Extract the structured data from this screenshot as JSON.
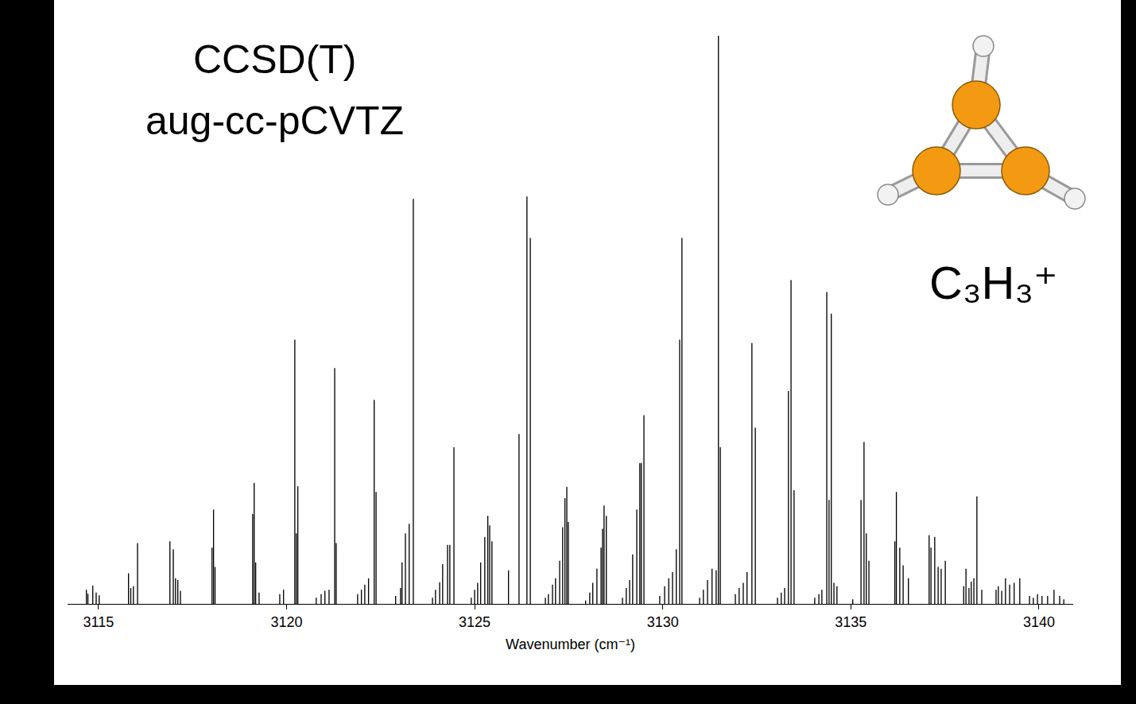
{
  "chart_data": {
    "type": "bar",
    "annotations": [
      "CCSD(T)",
      "aug-cc-pCVTZ",
      "C₃H₃⁺"
    ],
    "x_label": "Wavenumber (cm⁻¹)",
    "x": [
      3114.68,
      3114.72,
      3114.85,
      3114.94,
      3115.02,
      3115.8,
      3115.86,
      3115.93,
      3116.04,
      3116.9,
      3116.99,
      3117.05,
      3117.11,
      3117.18,
      3118.02,
      3118.06,
      3118.1,
      3119.1,
      3119.14,
      3119.18,
      3119.27,
      3119.82,
      3119.92,
      3120.22,
      3120.26,
      3120.3,
      3120.79,
      3120.92,
      3121.02,
      3121.13,
      3121.28,
      3121.32,
      3121.89,
      3121.99,
      3122.08,
      3122.18,
      3122.33,
      3122.38,
      3122.9,
      3123.03,
      3123.07,
      3123.16,
      3123.26,
      3123.37,
      3123.88,
      3123.96,
      3124.07,
      3124.15,
      3124.28,
      3124.34,
      3124.45,
      3124.91,
      3125.0,
      3125.08,
      3125.16,
      3125.27,
      3125.35,
      3125.4,
      3125.46,
      3125.9,
      3126.18,
      3126.39,
      3126.48,
      3126.88,
      3126.96,
      3127.07,
      3127.15,
      3127.26,
      3127.34,
      3127.4,
      3127.45,
      3127.49,
      3127.95,
      3128.06,
      3128.14,
      3128.25,
      3128.36,
      3128.4,
      3128.44,
      3128.5,
      3128.93,
      3129.03,
      3129.12,
      3129.2,
      3129.31,
      3129.39,
      3129.43,
      3129.5,
      3129.92,
      3130.05,
      3130.16,
      3130.26,
      3130.36,
      3130.45,
      3130.51,
      3130.98,
      3131.08,
      3131.19,
      3131.31,
      3131.42,
      3131.48,
      3131.53,
      3131.93,
      3132.03,
      3132.14,
      3132.24,
      3132.37,
      3132.46,
      3133.05,
      3133.15,
      3133.24,
      3133.34,
      3133.41,
      3133.49,
      3134.04,
      3134.15,
      3134.23,
      3134.36,
      3134.42,
      3134.48,
      3134.55,
      3134.63,
      3135.05,
      3135.27,
      3135.35,
      3135.41,
      3135.48,
      3136.17,
      3136.21,
      3136.3,
      3136.39,
      3136.53,
      3137.08,
      3137.13,
      3137.23,
      3137.32,
      3137.4,
      3137.51,
      3138.0,
      3138.06,
      3138.14,
      3138.2,
      3138.27,
      3138.35,
      3138.48,
      3138.86,
      3138.92,
      3139.01,
      3139.11,
      3139.22,
      3139.34,
      3139.49,
      3139.75,
      3139.85,
      3139.96,
      3140.08,
      3140.23,
      3140.4,
      3140.55,
      3140.66
    ],
    "values": [
      2.5,
      1.8,
      3.2,
      2.0,
      1.5,
      5.4,
      2.8,
      3.1,
      10.7,
      11.0,
      9.6,
      4.5,
      4.2,
      2.3,
      9.9,
      16.6,
      6.5,
      15.8,
      21.3,
      7.3,
      2.0,
      1.7,
      2.5,
      46.5,
      12.4,
      20.7,
      1.1,
      1.7,
      2.3,
      2.5,
      41.5,
      10.7,
      1.7,
      2.5,
      3.4,
      4.5,
      35.9,
      19.7,
      1.4,
      2.8,
      7.3,
      12.4,
      14.1,
      71.3,
      1.1,
      2.5,
      3.8,
      7.0,
      10.4,
      10.4,
      27.6,
      1.1,
      2.5,
      3.7,
      7.3,
      11.8,
      15.5,
      13.8,
      11.0,
      5.9,
      29.9,
      71.7,
      64.4,
      1.1,
      1.7,
      3.4,
      4.5,
      7.6,
      13.5,
      18.6,
      20.6,
      14.4,
      0.6,
      2.0,
      3.7,
      6.2,
      9.9,
      13.2,
      17.3,
      15.5,
      1.1,
      2.8,
      4.2,
      8.7,
      16.6,
      24.8,
      24.8,
      33.2,
      1.4,
      3.1,
      4.5,
      5.6,
      9.6,
      46.5,
      64.4,
      1.1,
      2.5,
      4.2,
      6.2,
      5.9,
      100,
      27.6,
      1.7,
      2.8,
      3.7,
      5.6,
      45.9,
      31.0,
      1.1,
      2.0,
      2.8,
      37.5,
      57.0,
      20.0,
      1.1,
      1.7,
      2.5,
      54.9,
      18.3,
      51.1,
      3.7,
      3.1,
      0.8,
      18.3,
      28.5,
      12.4,
      7.6,
      11.0,
      19.7,
      9.9,
      6.8,
      4.5,
      12.1,
      9.9,
      11.8,
      6.5,
      6.2,
      7.6,
      3.1,
      6.2,
      2.8,
      3.9,
      4.5,
      18.9,
      2.5,
      2.5,
      3.1,
      2.3,
      4.5,
      3.4,
      3.7,
      4.5,
      1.4,
      1.1,
      1.7,
      1.4,
      1.4,
      2.5,
      1.4,
      0.8
    ],
    "color": "#000000",
    "xlim": [
      3114.18,
      3140.91
    ],
    "xticks": [
      3115,
      3120,
      3125,
      3130,
      3135,
      3140
    ],
    "ylim": [
      0,
      100
    ],
    "grid": false,
    "tick_labels": "x"
  }
}
